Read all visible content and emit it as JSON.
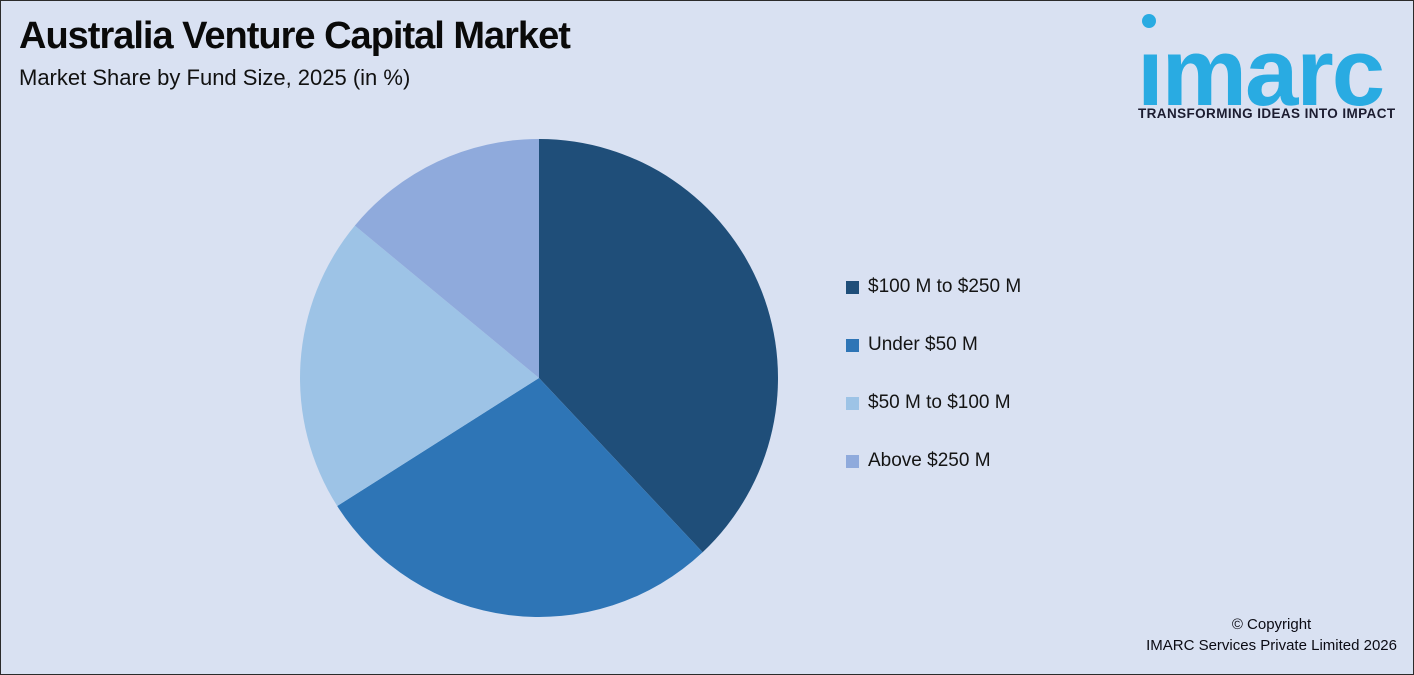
{
  "header": {
    "title": "Australia Venture Capital Market",
    "subtitle": "Market Share by Fund Size, 2025 (in %)"
  },
  "logo": {
    "wordmark": "imarc",
    "tagline": "TRANSFORMING IDEAS INTO IMPACT"
  },
  "chart_data": {
    "type": "pie",
    "title": "Australia Venture Capital Market",
    "subtitle": "Market Share by Fund Size, 2025 (in %)",
    "labels": [
      "$100 M to $250 M",
      "Under $50 M",
      "$50 M to $100 M",
      "Above $250 M"
    ],
    "values": [
      38,
      28,
      20,
      14
    ],
    "colors": [
      "#1F4E79",
      "#2E75B6",
      "#9DC3E6",
      "#8FAADC"
    ],
    "start_angle_deg": 0,
    "direction": "clockwise",
    "legend_position": "right",
    "data_labels_shown": false
  },
  "footer": {
    "copyright_line1": "© Copyright",
    "copyright_line2": "IMARC Services Private Limited 2026"
  },
  "colors": {
    "background": "#D9E1F2",
    "logo_blue": "#29ABE2",
    "tagline_text": "#1C1C30",
    "title_text": "#0A0A0A"
  }
}
